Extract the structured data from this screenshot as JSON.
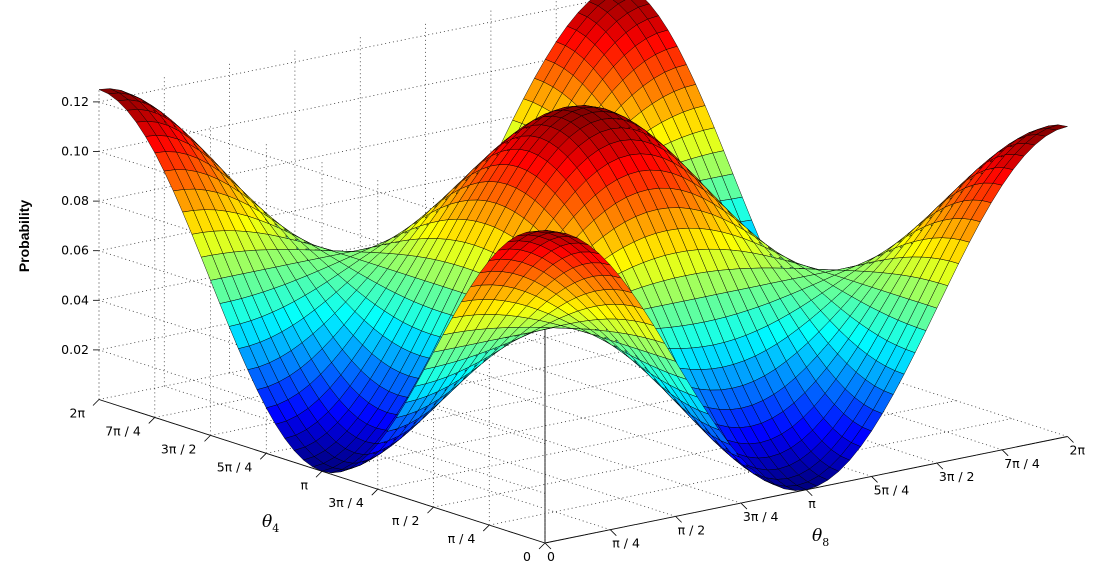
{
  "chart_data": {
    "type": "surface3d",
    "title": "",
    "xlabel": {
      "main": "θ",
      "sub": "8"
    },
    "ylabel": {
      "main": "θ",
      "sub": "4"
    },
    "zlabel": "Probability",
    "x_range": [
      0,
      6.2832
    ],
    "y_range": [
      0,
      6.2832
    ],
    "z_range": [
      0,
      0.125
    ],
    "x_ticks": [
      {
        "label": "0",
        "value": 0
      },
      {
        "label": "π / 4",
        "value": 0.7854
      },
      {
        "label": "π / 2",
        "value": 1.5708
      },
      {
        "label": "3π / 4",
        "value": 2.3562
      },
      {
        "label": "π",
        "value": 3.1416
      },
      {
        "label": "5π / 4",
        "value": 3.927
      },
      {
        "label": "3π / 2",
        "value": 4.7124
      },
      {
        "label": "7π / 4",
        "value": 5.4978
      },
      {
        "label": "2π",
        "value": 6.2832
      }
    ],
    "y_ticks": [
      {
        "label": "0",
        "value": 0
      },
      {
        "label": "π / 4",
        "value": 0.7854
      },
      {
        "label": "π / 2",
        "value": 1.5708
      },
      {
        "label": "3π / 4",
        "value": 2.3562
      },
      {
        "label": "π",
        "value": 3.1416
      },
      {
        "label": "5π / 4",
        "value": 3.927
      },
      {
        "label": "3π / 2",
        "value": 4.7124
      },
      {
        "label": "7π / 4",
        "value": 5.4978
      },
      {
        "label": "2π",
        "value": 6.2832
      }
    ],
    "z_ticks": [
      {
        "label": "0.02",
        "value": 0.02
      },
      {
        "label": "0.04",
        "value": 0.04
      },
      {
        "label": "0.06",
        "value": 0.06
      },
      {
        "label": "0.08",
        "value": 0.08
      },
      {
        "label": "0.10",
        "value": 0.1
      },
      {
        "label": "0.12",
        "value": 0.12
      }
    ],
    "surface": {
      "function": "z = 0.0625 * (1 + cos(θ4) * cos(θ8))",
      "grid_points": 49,
      "colormap": "jet",
      "edge_color": "#000000"
    },
    "grid": true
  }
}
